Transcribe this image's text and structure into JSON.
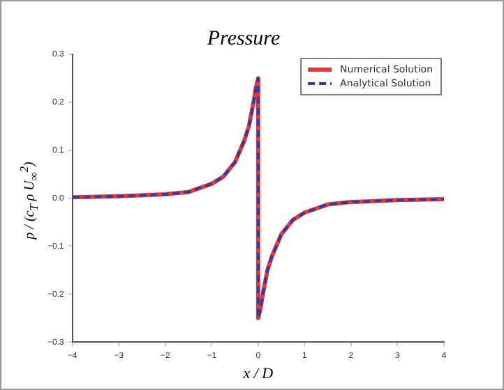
{
  "chart_data": {
    "type": "line",
    "title": "Pressure",
    "xlabel": "x / D",
    "ylabel": "p / (c$_{T}$ ρ U$_{∞}$$^{2}$)",
    "x": [
      -4,
      -3,
      -2,
      -1.5,
      -1,
      -0.75,
      -0.5,
      -0.3,
      -0.2,
      -0.1,
      -0.05,
      0,
      0,
      0.05,
      0.1,
      0.2,
      0.3,
      0.5,
      0.75,
      1,
      1.5,
      2,
      3,
      4
    ],
    "series": [
      {
        "name": "Numerical Solution",
        "color": "#e03a3e",
        "line_style": "solid",
        "values": [
          0.002,
          0.004,
          0.008,
          0.013,
          0.03,
          0.045,
          0.075,
          0.12,
          0.15,
          0.2,
          0.23,
          0.25,
          -0.25,
          -0.23,
          -0.2,
          -0.15,
          -0.12,
          -0.075,
          -0.045,
          -0.03,
          -0.013,
          -0.008,
          -0.004,
          -0.002
        ]
      },
      {
        "name": "Analytical Solution",
        "color": "#3a3a9a",
        "line_style": "dashed",
        "values": [
          0.002,
          0.004,
          0.008,
          0.013,
          0.03,
          0.045,
          0.075,
          0.12,
          0.15,
          0.2,
          0.23,
          0.25,
          -0.25,
          -0.23,
          -0.2,
          -0.15,
          -0.12,
          -0.075,
          -0.045,
          -0.03,
          -0.013,
          -0.008,
          -0.004,
          -0.002
        ]
      }
    ],
    "xlim": [
      -4,
      4
    ],
    "xticks": [
      {
        "value": -4,
        "label": "−4"
      },
      {
        "value": -3,
        "label": "−3"
      },
      {
        "value": -2,
        "label": "−2"
      },
      {
        "value": -1,
        "label": "−1"
      },
      0,
      1,
      2,
      3,
      4
    ],
    "ylim": [
      -0.3,
      0.3
    ],
    "yticks": [
      {
        "value": -0.3,
        "label": "−0.3"
      },
      {
        "value": -0.2,
        "label": "−0.2"
      },
      {
        "value": -0.1,
        "label": "−0.1"
      },
      {
        "value": 0,
        "label": "0.0"
      },
      0.1,
      0.2,
      0.3
    ],
    "grid": false,
    "legend": "top right",
    "marker": "none"
  }
}
